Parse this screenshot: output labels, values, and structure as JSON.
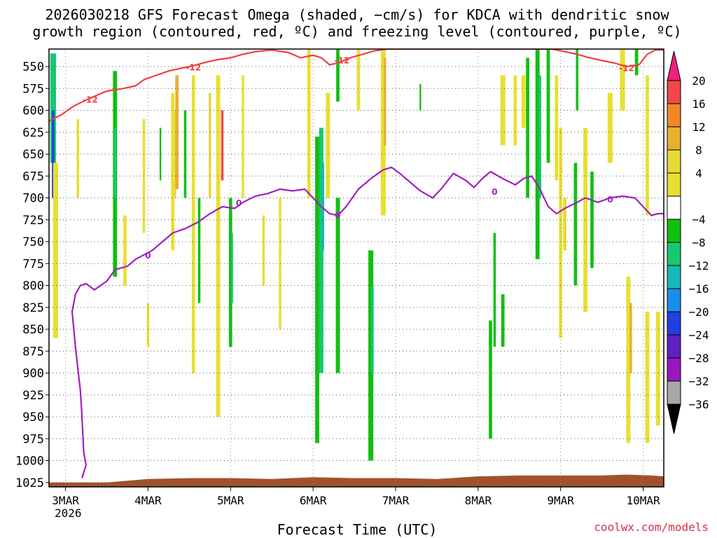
{
  "chart_data": {
    "type": "time-height cross-section",
    "title_line1": "2026030218 GFS Forecast Omega (shaded, −cm/s) for KDCA with dendritic snow",
    "title_line2": "growth region (contoured, red, ºC) and freezing level (contoured, purple, ºC)",
    "xlabel": "Forecast Time (UTC)",
    "credit": "coolwx.com/models",
    "y_range_hPa": [
      1030,
      530
    ],
    "y_ticks": [
      "550",
      "575",
      "600",
      "625",
      "650",
      "675",
      "700",
      "725",
      "750",
      "775",
      "800",
      "825",
      "850",
      "875",
      "900",
      "925",
      "950",
      "975",
      "1000",
      "1025"
    ],
    "x_ticks": [
      {
        "label": "3MAR",
        "day": 0
      },
      {
        "label": "4MAR",
        "day": 1
      },
      {
        "label": "5MAR",
        "day": 2
      },
      {
        "label": "6MAR",
        "day": 3
      },
      {
        "label": "7MAR",
        "day": 4
      },
      {
        "label": "8MAR",
        "day": 5
      },
      {
        "label": "9MAR",
        "day": 6
      },
      {
        "label": "10MAR",
        "day": 7
      }
    ],
    "x_year": "2026",
    "x_range_days": [
      -0.2,
      7.25
    ],
    "colorbar": {
      "labels": [
        "20",
        "16",
        "12",
        "8",
        "4",
        "−4",
        "−8",
        "−12",
        "−16",
        "−20",
        "−24",
        "−28",
        "−32",
        "−36"
      ],
      "colors": [
        "#f0207a",
        "#f04848",
        "#f08828",
        "#e8b030",
        "#e8d838",
        "#e8e030",
        "#ffffff",
        "#10c010",
        "#18c870",
        "#18b8b8",
        "#1890e8",
        "#2040e0",
        "#6020c0",
        "#9818c0",
        "#a8a8a8",
        "#000000"
      ]
    },
    "contour_labels": {
      "dendritic": "-12",
      "freezing": "0"
    },
    "freezing_level_series": {
      "name": "0 ºC level",
      "points": [
        [
          0.2,
          1020
        ],
        [
          0.25,
          1005
        ],
        [
          0.22,
          990
        ],
        [
          0.2,
          950
        ],
        [
          0.18,
          920
        ],
        [
          0.15,
          895
        ],
        [
          0.12,
          870
        ],
        [
          0.1,
          850
        ],
        [
          0.08,
          830
        ],
        [
          0.12,
          810
        ],
        [
          0.18,
          800
        ],
        [
          0.25,
          798
        ],
        [
          0.35,
          805
        ],
        [
          0.5,
          795
        ],
        [
          0.6,
          782
        ],
        [
          0.75,
          778
        ],
        [
          0.85,
          770
        ],
        [
          0.95,
          765
        ],
        [
          1.05,
          760
        ],
        [
          1.15,
          752
        ],
        [
          1.3,
          740
        ],
        [
          1.45,
          735
        ],
        [
          1.6,
          728
        ],
        [
          1.75,
          718
        ],
        [
          1.9,
          710
        ],
        [
          2.05,
          712
        ],
        [
          2.15,
          705
        ],
        [
          2.3,
          698
        ],
        [
          2.45,
          695
        ],
        [
          2.6,
          690
        ],
        [
          2.75,
          692
        ],
        [
          2.9,
          690
        ],
        [
          3.0,
          700
        ],
        [
          3.1,
          710
        ],
        [
          3.2,
          718
        ],
        [
          3.3,
          720
        ],
        [
          3.4,
          710
        ],
        [
          3.55,
          690
        ],
        [
          3.7,
          678
        ],
        [
          3.85,
          668
        ],
        [
          3.95,
          665
        ],
        [
          4.05,
          672
        ],
        [
          4.15,
          680
        ],
        [
          4.3,
          692
        ],
        [
          4.45,
          700
        ],
        [
          4.55,
          690
        ],
        [
          4.7,
          672
        ],
        [
          4.85,
          680
        ],
        [
          4.95,
          688
        ],
        [
          5.05,
          678
        ],
        [
          5.15,
          670
        ],
        [
          5.3,
          678
        ],
        [
          5.45,
          685
        ],
        [
          5.55,
          678
        ],
        [
          5.65,
          675
        ],
        [
          5.75,
          690
        ],
        [
          5.85,
          710
        ],
        [
          5.95,
          718
        ],
        [
          6.05,
          712
        ],
        [
          6.2,
          705
        ],
        [
          6.3,
          700
        ],
        [
          6.45,
          705
        ],
        [
          6.6,
          700
        ],
        [
          6.75,
          698
        ],
        [
          6.9,
          700
        ],
        [
          7.0,
          710
        ],
        [
          7.1,
          720
        ],
        [
          7.18,
          718
        ],
        [
          7.25,
          718
        ]
      ]
    },
    "dendritic_minus12_series": {
      "name": "-12 ºC level",
      "points": [
        [
          -0.2,
          612
        ],
        [
          -0.05,
          605
        ],
        [
          0.1,
          595
        ],
        [
          0.3,
          586
        ],
        [
          0.5,
          578
        ],
        [
          0.7,
          575
        ],
        [
          0.85,
          572
        ],
        [
          0.95,
          565
        ],
        [
          1.1,
          560
        ],
        [
          1.25,
          555
        ],
        [
          1.4,
          552
        ],
        [
          1.55,
          549
        ],
        [
          1.7,
          545
        ],
        [
          1.85,
          542
        ],
        [
          2.0,
          540
        ],
        [
          2.15,
          536
        ],
        [
          2.3,
          533
        ],
        [
          2.5,
          531
        ],
        [
          2.7,
          534
        ],
        [
          2.85,
          540
        ],
        [
          3.0,
          537
        ],
        [
          3.1,
          540
        ],
        [
          3.2,
          548
        ],
        [
          3.3,
          546
        ],
        [
          3.45,
          540
        ],
        [
          3.6,
          536
        ],
        [
          3.75,
          532
        ],
        [
          3.9,
          530
        ],
        [
          4.1,
          530
        ],
        [
          4.4,
          530
        ],
        [
          4.7,
          530
        ],
        [
          5.0,
          530
        ],
        [
          5.3,
          530
        ],
        [
          5.6,
          530
        ],
        [
          5.9,
          530
        ],
        [
          6.2,
          536
        ],
        [
          6.35,
          540
        ],
        [
          6.5,
          543
        ],
        [
          6.65,
          546
        ],
        [
          6.8,
          550
        ],
        [
          6.95,
          548
        ],
        [
          7.05,
          536
        ],
        [
          7.15,
          531
        ],
        [
          7.25,
          531
        ]
      ]
    },
    "omega_regions": [
      {
        "day": -0.15,
        "w": 0.07,
        "top": 535,
        "bot": 660,
        "value": -12
      },
      {
        "day": -0.15,
        "w": 0.03,
        "top": 600,
        "bot": 700,
        "value": -20
      },
      {
        "day": -0.12,
        "w": 0.06,
        "top": 660,
        "bot": 860,
        "value": 4
      },
      {
        "day": 0.15,
        "w": 0.03,
        "top": 610,
        "bot": 700,
        "value": 4
      },
      {
        "day": 0.6,
        "w": 0.05,
        "top": 555,
        "bot": 790,
        "value": -8
      },
      {
        "day": 0.6,
        "w": 0.03,
        "top": 620,
        "bot": 700,
        "value": -12
      },
      {
        "day": 0.72,
        "w": 0.04,
        "top": 720,
        "bot": 800,
        "value": 4
      },
      {
        "day": 0.95,
        "w": 0.03,
        "top": 610,
        "bot": 740,
        "value": 4
      },
      {
        "day": 1.0,
        "w": 0.03,
        "top": 820,
        "bot": 870,
        "value": 4
      },
      {
        "day": 1.15,
        "w": 0.02,
        "top": 620,
        "bot": 680,
        "value": -8
      },
      {
        "day": 1.3,
        "w": 0.04,
        "top": 580,
        "bot": 760,
        "value": 4
      },
      {
        "day": 1.33,
        "w": 0.02,
        "top": 600,
        "bot": 700,
        "value": 8
      },
      {
        "day": 1.35,
        "w": 0.04,
        "top": 560,
        "bot": 690,
        "value": 12
      },
      {
        "day": 1.45,
        "w": 0.03,
        "top": 600,
        "bot": 700,
        "value": -8
      },
      {
        "day": 1.55,
        "w": 0.04,
        "top": 560,
        "bot": 900,
        "value": 4
      },
      {
        "day": 1.62,
        "w": 0.03,
        "top": 700,
        "bot": 820,
        "value": -8
      },
      {
        "day": 1.75,
        "w": 0.03,
        "top": 580,
        "bot": 700,
        "value": 8
      },
      {
        "day": 1.85,
        "w": 0.05,
        "top": 560,
        "bot": 950,
        "value": 4
      },
      {
        "day": 1.9,
        "w": 0.03,
        "top": 600,
        "bot": 680,
        "value": 16
      },
      {
        "day": 2.0,
        "w": 0.04,
        "top": 700,
        "bot": 870,
        "value": -8
      },
      {
        "day": 2.02,
        "w": 0.02,
        "top": 740,
        "bot": 820,
        "value": -12
      },
      {
        "day": 2.15,
        "w": 0.03,
        "top": 560,
        "bot": 700,
        "value": 4
      },
      {
        "day": 2.4,
        "w": 0.03,
        "top": 720,
        "bot": 800,
        "value": 4
      },
      {
        "day": 2.6,
        "w": 0.03,
        "top": 700,
        "bot": 850,
        "value": 4
      },
      {
        "day": 2.95,
        "w": 0.04,
        "top": 530,
        "bot": 700,
        "value": 4
      },
      {
        "day": 3.05,
        "w": 0.05,
        "top": 630,
        "bot": 980,
        "value": -8
      },
      {
        "day": 3.1,
        "w": 0.05,
        "top": 620,
        "bot": 900,
        "value": -12
      },
      {
        "day": 3.12,
        "w": 0.03,
        "top": 660,
        "bot": 760,
        "value": -16
      },
      {
        "day": 3.18,
        "w": 0.05,
        "top": 580,
        "bot": 700,
        "value": 4
      },
      {
        "day": 3.3,
        "w": 0.05,
        "top": 700,
        "bot": 900,
        "value": -8
      },
      {
        "day": 3.3,
        "w": 0.04,
        "top": 530,
        "bot": 590,
        "value": -8
      },
      {
        "day": 3.55,
        "w": 0.04,
        "top": 530,
        "bot": 600,
        "value": 4
      },
      {
        "day": 3.7,
        "w": 0.06,
        "top": 760,
        "bot": 1000,
        "value": -8
      },
      {
        "day": 3.72,
        "w": 0.03,
        "top": 800,
        "bot": 900,
        "value": -12
      },
      {
        "day": 3.85,
        "w": 0.06,
        "top": 530,
        "bot": 720,
        "value": 4
      },
      {
        "day": 3.87,
        "w": 0.03,
        "top": 540,
        "bot": 640,
        "value": 12
      },
      {
        "day": 4.3,
        "w": 0.02,
        "top": 570,
        "bot": 600,
        "value": -8
      },
      {
        "day": 5.15,
        "w": 0.04,
        "top": 840,
        "bot": 975,
        "value": -8
      },
      {
        "day": 5.2,
        "w": 0.03,
        "top": 740,
        "bot": 870,
        "value": -8
      },
      {
        "day": 5.3,
        "w": 0.04,
        "top": 810,
        "bot": 870,
        "value": -8
      },
      {
        "day": 5.3,
        "w": 0.06,
        "top": 560,
        "bot": 640,
        "value": 4
      },
      {
        "day": 5.45,
        "w": 0.04,
        "top": 560,
        "bot": 640,
        "value": 4
      },
      {
        "day": 5.55,
        "w": 0.05,
        "top": 560,
        "bot": 620,
        "value": 4
      },
      {
        "day": 5.6,
        "w": 0.04,
        "top": 540,
        "bot": 700,
        "value": -8
      },
      {
        "day": 5.72,
        "w": 0.05,
        "top": 530,
        "bot": 770,
        "value": -8
      },
      {
        "day": 5.75,
        "w": 0.03,
        "top": 560,
        "bot": 700,
        "value": -12
      },
      {
        "day": 5.85,
        "w": 0.04,
        "top": 530,
        "bot": 660,
        "value": -8
      },
      {
        "day": 5.95,
        "w": 0.04,
        "top": 560,
        "bot": 680,
        "value": 4
      },
      {
        "day": 6.0,
        "w": 0.04,
        "top": 620,
        "bot": 860,
        "value": 4
      },
      {
        "day": 6.05,
        "w": 0.04,
        "top": 700,
        "bot": 760,
        "value": 8
      },
      {
        "day": 6.18,
        "w": 0.04,
        "top": 660,
        "bot": 800,
        "value": -8
      },
      {
        "day": 6.2,
        "w": 0.03,
        "top": 530,
        "bot": 600,
        "value": -8
      },
      {
        "day": 6.3,
        "w": 0.05,
        "top": 620,
        "bot": 830,
        "value": 4
      },
      {
        "day": 6.38,
        "w": 0.04,
        "top": 670,
        "bot": 780,
        "value": -8
      },
      {
        "day": 6.6,
        "w": 0.06,
        "top": 580,
        "bot": 660,
        "value": 4
      },
      {
        "day": 6.75,
        "w": 0.06,
        "top": 530,
        "bot": 600,
        "value": 4
      },
      {
        "day": 6.82,
        "w": 0.05,
        "top": 790,
        "bot": 980,
        "value": 4
      },
      {
        "day": 6.85,
        "w": 0.03,
        "top": 820,
        "bot": 900,
        "value": 12
      },
      {
        "day": 6.92,
        "w": 0.04,
        "top": 530,
        "bot": 560,
        "value": -8
      },
      {
        "day": 7.05,
        "w": 0.05,
        "top": 830,
        "bot": 980,
        "value": 4
      },
      {
        "day": 7.05,
        "w": 0.04,
        "top": 560,
        "bot": 720,
        "value": 4
      },
      {
        "day": 7.18,
        "w": 0.05,
        "top": 830,
        "bot": 960,
        "value": 4
      }
    ],
    "terrain_surface_hPa": [
      [
        -0.2,
        1025
      ],
      [
        0.5,
        1025
      ],
      [
        1.0,
        1021
      ],
      [
        1.5,
        1020
      ],
      [
        2.0,
        1020
      ],
      [
        2.5,
        1021
      ],
      [
        3.0,
        1019
      ],
      [
        3.5,
        1020
      ],
      [
        4.0,
        1020
      ],
      [
        4.5,
        1021
      ],
      [
        5.0,
        1018
      ],
      [
        5.5,
        1017
      ],
      [
        6.0,
        1017
      ],
      [
        6.5,
        1017
      ],
      [
        6.8,
        1016
      ],
      [
        7.1,
        1017
      ],
      [
        7.25,
        1018
      ]
    ]
  }
}
